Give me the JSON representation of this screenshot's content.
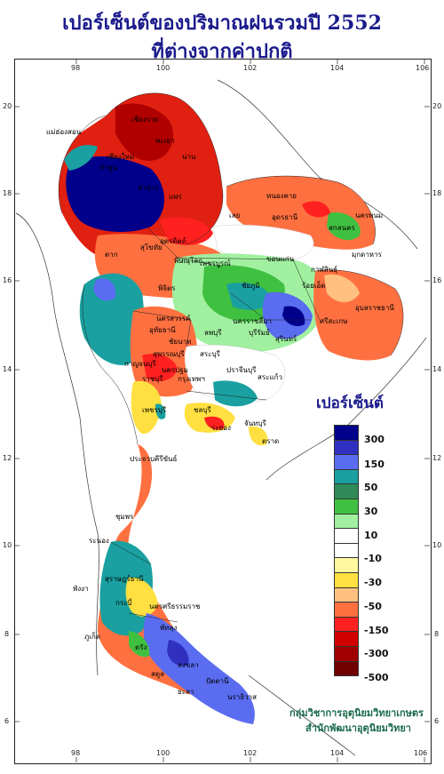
{
  "title": {
    "line1": "เปอร์เซ็นต์ของปริมาณฝนรวมปี  2552",
    "line2": "ที่ต่างจากค่าปกติ"
  },
  "axes": {
    "lon_ticks": [
      "98",
      "100",
      "102",
      "104",
      "106"
    ],
    "lat_ticks": [
      "20",
      "18",
      "16",
      "14",
      "12",
      "10",
      "8",
      "6"
    ]
  },
  "legend": {
    "title": "เปอร์เซ็นต์",
    "colors": [
      "#00008b",
      "#3030c0",
      "#5a6cf0",
      "#1aa0a0",
      "#2e8b57",
      "#40c040",
      "#a0f0a0",
      "#ffffff",
      "#ffffff",
      "#fff8a0",
      "#ffe040",
      "#ffc080",
      "#ff7040",
      "#ff2020",
      "#d00000",
      "#a00000",
      "#700000"
    ],
    "labels": [
      "300",
      "150",
      "50",
      "30",
      "10",
      "-10",
      "-30",
      "-50",
      "-150",
      "-300",
      "-500"
    ]
  },
  "provinces": [
    "เชียงราย",
    "พะเยา",
    "น่าน",
    "ลำพูน",
    "เชียงใหม่",
    "แม่ฮ่องสอน",
    "ลำปาง",
    "แพร่",
    "อุตรดิตถ์",
    "เลย",
    "หนองคาย",
    "อุดรธานี",
    "สกลนคร",
    "นครพนม",
    "มุกดาหาร",
    "ขอนแก่น",
    "กาฬสินธุ์",
    "ร้อยเอ็ด",
    "อุบลราชธานี",
    "ชัยภูมิ",
    "นครราชสีมา",
    "บุรีรัมย์",
    "สุรินทร์",
    "ศรีสะเกษ",
    "ตาก",
    "สุโขทัย",
    "พิษณุโลก",
    "พิจิตร",
    "เพชรบูรณ์",
    "นครสวรรค์",
    "อุทัยธานี",
    "ชัยนาท",
    "ลพบุรี",
    "สระบุรี",
    "สุพรรณบุรี",
    "กาญจนบุรี",
    "ราชบุรี",
    "นครปฐม",
    "กรุงเทพฯ",
    "ชลบุรี",
    "ระยอง",
    "จันทบุรี",
    "ตราด",
    "ปราจีนบุรี",
    "สระแก้ว",
    "เพชรบุรี",
    "ประจวบคีรีขันธ์",
    "ชุมพร",
    "ระนอง",
    "สุราษฎร์ธานี",
    "พังงา",
    "ภูเก็ต",
    "กระบี่",
    "นครศรีธรรมราช",
    "ตรัง",
    "พัทลุง",
    "สตูล",
    "สงขลา",
    "ปัตตานี",
    "ยะลา",
    "นราธิวาส"
  ],
  "credit": {
    "line1": "กลุ่มวิชาการอุตุนิยมวิทยาเกษตร",
    "line2": "สำนักพัฒนาอุตุนิยมวิทยา"
  }
}
